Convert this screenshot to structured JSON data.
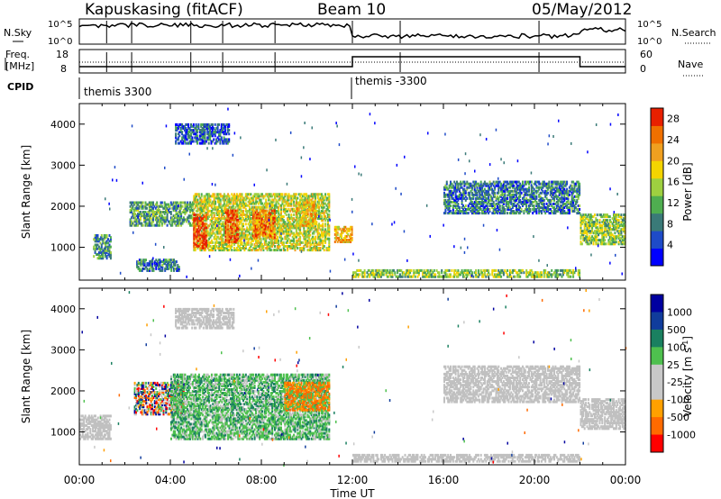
{
  "header": {
    "station": "Kapuskasing (fitACF)",
    "beam": "Beam 10",
    "date": "05/May/2012"
  },
  "top_panel": {
    "nsky_label": "N.Sky",
    "nsearch_label": "N.Search",
    "freq_label_1": "Freq.",
    "freq_label_2": "[MHz]",
    "nave_label": "Nave",
    "cpid_label": "CPID",
    "left_ticks": {
      "high": "10^5",
      "low": "10^0"
    },
    "right_ticks": {
      "high": "10^5",
      "low": "10^0"
    },
    "freq_ticks": [
      "18",
      "8"
    ],
    "nave_ticks": [
      "60",
      "0"
    ],
    "cpid_segments": [
      "themis 3300",
      "themis -3300"
    ]
  },
  "colors": {
    "power_scale": [
      "#0000ff",
      "#1e4bc8",
      "#3a7a78",
      "#4fae50",
      "#9ed040",
      "#f4d400",
      "#f0a020",
      "#f07000",
      "#e82000"
    ],
    "velocity_scale": [
      "#ff0000",
      "#ff6a00",
      "#ffa000",
      "#c8c8c8",
      "#c8c8c8",
      "#4ec04e",
      "#1a8060",
      "#103c9c",
      "#0000a0"
    ],
    "ground_scatter": "#c0c0c0"
  },
  "chart_data": [
    {
      "type": "heatmap",
      "name": "power",
      "ylabel": "Slant Range [km]",
      "xlabel": "Time UT",
      "x_ticks": [
        "00:00",
        "04:00",
        "08:00",
        "12:00",
        "16:00",
        "20:00",
        "00:00"
      ],
      "y_ticks": [
        1000,
        2000,
        3000,
        4000
      ],
      "ylim": [
        200,
        4500
      ],
      "xlim_hours": [
        0,
        24
      ],
      "colorbar": {
        "label": "Power [dB]",
        "ticks": [
          4,
          8,
          12,
          16,
          20,
          24,
          28
        ],
        "range": [
          0,
          30
        ]
      },
      "regions": [
        {
          "t0": 0.6,
          "t1": 1.4,
          "r0": 700,
          "r1": 1300,
          "level": 10
        },
        {
          "t0": 2.5,
          "t1": 4.4,
          "r0": 400,
          "r1": 700,
          "level": 8
        },
        {
          "t0": 2.2,
          "t1": 5.0,
          "r0": 1500,
          "r1": 2100,
          "level": 11
        },
        {
          "t0": 5.0,
          "t1": 11.0,
          "r0": 900,
          "r1": 2300,
          "level": 16
        },
        {
          "t0": 5.0,
          "t1": 5.6,
          "r0": 950,
          "r1": 1800,
          "level": 28
        },
        {
          "t0": 6.4,
          "t1": 7.0,
          "r0": 1100,
          "r1": 1900,
          "level": 26
        },
        {
          "t0": 7.6,
          "t1": 8.6,
          "r0": 1200,
          "r1": 1900,
          "level": 24
        },
        {
          "t0": 9.5,
          "t1": 10.4,
          "r0": 1500,
          "r1": 2100,
          "level": 20
        },
        {
          "t0": 11.2,
          "t1": 12.0,
          "r0": 1100,
          "r1": 1500,
          "level": 20
        },
        {
          "t0": 4.2,
          "t1": 6.6,
          "r0": 3500,
          "r1": 4000,
          "level": 6
        },
        {
          "t0": 12.0,
          "t1": 22.0,
          "r0": 250,
          "r1": 450,
          "level": 14
        },
        {
          "t0": 16.0,
          "t1": 22.0,
          "r0": 1800,
          "r1": 2600,
          "level": 8
        },
        {
          "t0": 22.0,
          "t1": 24.0,
          "r0": 1050,
          "r1": 1800,
          "level": 14
        }
      ]
    },
    {
      "type": "heatmap",
      "name": "velocity",
      "ylabel": "Slant Range [km]",
      "xlabel": "Time UT",
      "x_ticks": [
        "00:00",
        "04:00",
        "08:00",
        "12:00",
        "16:00",
        "20:00",
        "00:00"
      ],
      "y_ticks": [
        1000,
        2000,
        3000,
        4000
      ],
      "ylim": [
        200,
        4500
      ],
      "xlim_hours": [
        0,
        24
      ],
      "colorbar": {
        "label": "Velocity [m s-1]",
        "ticks": [
          "1000",
          "500",
          "100",
          "25",
          "-25",
          "-100",
          "-500",
          "-1000"
        ]
      },
      "regions": [
        {
          "t0": 0.0,
          "t1": 1.4,
          "r0": 800,
          "r1": 1400,
          "kind": "ground"
        },
        {
          "t0": 2.4,
          "t1": 4.6,
          "r0": 1400,
          "r1": 2200,
          "kind": "mixed"
        },
        {
          "t0": 4.0,
          "t1": 11.0,
          "r0": 800,
          "r1": 2400,
          "kind": "green"
        },
        {
          "t0": 9.0,
          "t1": 11.0,
          "r0": 1500,
          "r1": 2200,
          "kind": "orange"
        },
        {
          "t0": 12.0,
          "t1": 22.0,
          "r0": 250,
          "r1": 450,
          "kind": "ground"
        },
        {
          "t0": 16.0,
          "t1": 22.0,
          "r0": 1700,
          "r1": 2600,
          "kind": "ground"
        },
        {
          "t0": 22.0,
          "t1": 24.0,
          "r0": 1050,
          "r1": 1800,
          "kind": "ground"
        },
        {
          "t0": 4.2,
          "t1": 6.8,
          "r0": 3500,
          "r1": 4000,
          "kind": "ground"
        }
      ]
    }
  ]
}
